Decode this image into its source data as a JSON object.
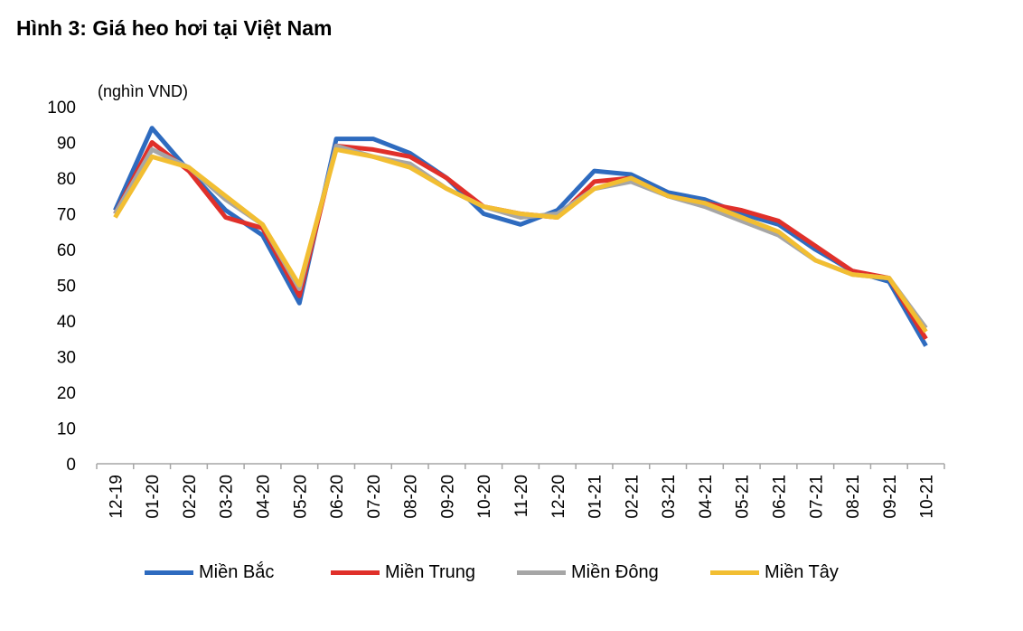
{
  "title": "Hình 3: Giá heo hơi tại Việt Nam",
  "chart_data": {
    "type": "line",
    "title": "Hình 3: Giá heo hơi tại Việt Nam",
    "ylabel": "(nghìn VND)",
    "xlabel": "",
    "ylim": [
      0,
      100
    ],
    "yticks": [
      "0",
      "10",
      "20",
      "30",
      "40",
      "50",
      "60",
      "70",
      "80",
      "90",
      "100"
    ],
    "categories": [
      "12-19",
      "01-20",
      "02-20",
      "03-20",
      "04-20",
      "05-20",
      "06-20",
      "07-20",
      "08-20",
      "09-20",
      "10-20",
      "11-20",
      "12-20",
      "01-21",
      "02-21",
      "03-21",
      "04-21",
      "05-21",
      "06-21",
      "07-21",
      "08-21",
      "09-21",
      "10-21"
    ],
    "grid": false,
    "legend_position": "bottom",
    "series": [
      {
        "name": "Miền Bắc",
        "color": "#2e6bbf",
        "values": [
          71,
          94,
          82,
          71,
          64,
          45,
          91,
          91,
          87,
          80,
          70,
          67,
          71,
          82,
          81,
          76,
          74,
          70,
          67,
          60,
          54,
          51,
          33
        ]
      },
      {
        "name": "Miền Trung",
        "color": "#e0302a",
        "values": [
          70,
          90,
          82,
          69,
          66,
          47,
          89,
          88,
          86,
          80,
          72,
          70,
          69,
          79,
          80,
          75,
          73,
          71,
          68,
          61,
          54,
          52,
          35
        ]
      },
      {
        "name": "Miền Đông",
        "color": "#a6a6a6",
        "values": [
          70,
          88,
          83,
          74,
          67,
          49,
          89,
          86,
          84,
          77,
          72,
          69,
          70,
          77,
          79,
          75,
          72,
          68,
          64,
          57,
          53,
          52,
          38
        ]
      },
      {
        "name": "Miền Tây",
        "color": "#f2be32",
        "values": [
          69,
          86,
          83,
          75,
          67,
          50,
          88,
          86,
          83,
          77,
          72,
          70,
          69,
          77,
          80,
          75,
          73,
          69,
          65,
          57,
          53,
          52,
          37
        ]
      }
    ]
  }
}
